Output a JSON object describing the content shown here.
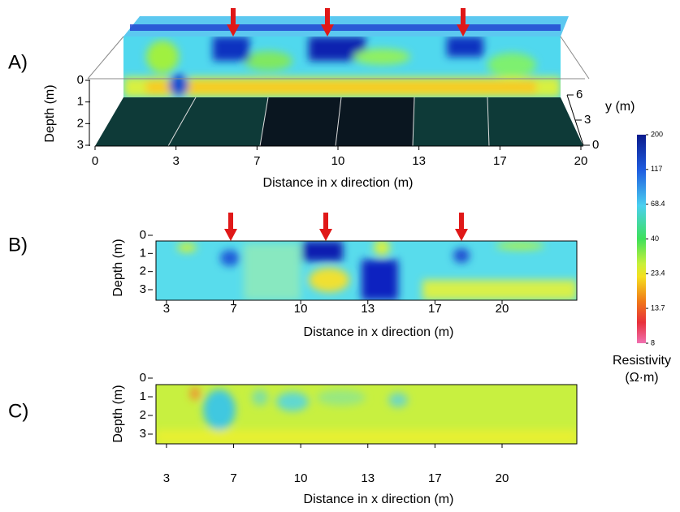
{
  "panels": [
    {
      "label": "A)",
      "xlabel": "Distance in x direction (m)",
      "ylabel": "Depth (m)",
      "y2label": "y (m)",
      "xlim": [
        0,
        20
      ],
      "xticks": [
        0,
        {
          "value": 3.333,
          "label": "3"
        },
        {
          "value": 6.667,
          "label": "7"
        },
        10,
        {
          "value": 13.333,
          "label": "13"
        },
        {
          "value": 16.667,
          "label": "17"
        },
        20
      ],
      "ylim": [
        0,
        3
      ],
      "yticks": [
        0,
        1,
        2,
        3
      ],
      "y2lim": [
        0,
        6
      ],
      "y2ticks": [
        6,
        3,
        0
      ]
    },
    {
      "label": "B)",
      "xlabel": "Distance in x direction (m)",
      "ylabel": "Depth (m)",
      "xlim": [
        1.4,
        22.3
      ],
      "xticks": [
        {
          "value": 3.333,
          "label": "3"
        },
        {
          "value": 6.667,
          "label": "7"
        },
        10,
        {
          "value": 13.333,
          "label": "13"
        },
        {
          "value": 16.667,
          "label": "17"
        },
        20
      ],
      "ylim": [
        0,
        3
      ],
      "yticks": [
        0,
        1,
        2,
        3
      ]
    },
    {
      "label": "C)",
      "xlabel": "Distance in x direction (m)",
      "ylabel": "Depth (m)",
      "xlim": [
        1.4,
        22.3
      ],
      "xticks": [
        {
          "value": 3.333,
          "label": "3"
        },
        {
          "value": 6.667,
          "label": "7"
        },
        10,
        {
          "value": 13.333,
          "label": "13"
        },
        {
          "value": 16.667,
          "label": "17"
        },
        20
      ],
      "ylim": [
        0,
        3
      ],
      "yticks": [
        0,
        1,
        2,
        3
      ]
    }
  ],
  "colorbar": {
    "title": "Resistivity",
    "unit": "(Ω·m)",
    "lim": [
      8,
      200
    ],
    "log": true,
    "ticks": [
      200,
      117,
      68.4,
      40,
      23.4,
      13.7,
      8
    ]
  }
}
